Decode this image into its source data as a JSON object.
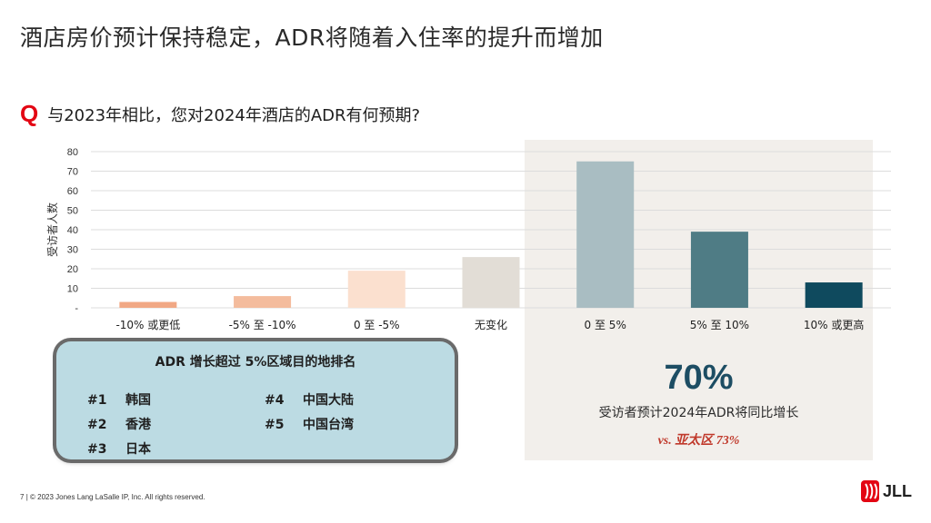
{
  "slide_title": "酒店房价预计保持稳定，ADR将随着入住率的提升而增加",
  "question": {
    "marker": "Q",
    "text": "与2023年相比，您对2024年酒店的ADR有何预期?"
  },
  "chart_data": {
    "type": "bar",
    "ylabel": "受访者人数",
    "ylim": [
      0,
      80
    ],
    "yticks": [
      "-",
      "10",
      "20",
      "30",
      "40",
      "50",
      "60",
      "70",
      "80"
    ],
    "categories": [
      "-10% 或更低",
      "-5% 至 -10%",
      "0 至 -5%",
      "无变化",
      "0 至 5%",
      "5% 至 10%",
      "10% 或更高"
    ],
    "values": [
      3,
      6,
      19,
      26,
      75,
      39,
      13
    ],
    "bar_colors": [
      "#f1a885",
      "#f4bc9d",
      "#fbe0cf",
      "#e2ddd6",
      "#a9bdc2",
      "#4f7c85",
      "#0f4a5e"
    ],
    "grid": true
  },
  "highlight": {
    "stat": "70%",
    "caption": "受访者预计2024年ADR将同比增长",
    "comparison": "vs. 亚太区 73%"
  },
  "ranking": {
    "title": "ADR 增长超过 5%区域目的地排名",
    "items": [
      {
        "rank": "#1",
        "name": "韩国"
      },
      {
        "rank": "#2",
        "name": "香港"
      },
      {
        "rank": "#3",
        "name": "日本"
      },
      {
        "rank": "#4",
        "name": "中国大陆"
      },
      {
        "rank": "#5",
        "name": "中国台湾"
      }
    ]
  },
  "footer": {
    "page": "7",
    "copyright": "© 2023 Jones Lang LaSalle IP, Inc. All rights reserved."
  },
  "logo": {
    "text": "JLL",
    "color": "#e30613"
  }
}
